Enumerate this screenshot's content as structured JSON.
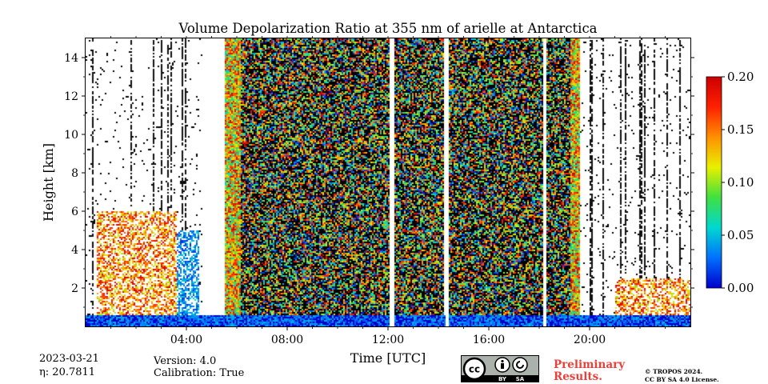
{
  "chart_data": {
    "type": "heatmap",
    "title": "Volume Depolarization Ratio at 355 nm of arielle at Antarctica",
    "xlabel": "Time [UTC]",
    "ylabel": "Height [km]",
    "xlim": [
      0,
      24
    ],
    "ylim": [
      0,
      15
    ],
    "xticks": [
      4,
      8,
      12,
      16,
      20
    ],
    "xtick_labels": [
      "04:00",
      "08:00",
      "12:00",
      "16:00",
      "20:00"
    ],
    "yticks": [
      2,
      4,
      6,
      8,
      10,
      12,
      14
    ],
    "ytick_labels": [
      "2",
      "4",
      "6",
      "8",
      "10",
      "12",
      "14"
    ],
    "colorbar": {
      "min": 0.0,
      "max": 0.2,
      "ticks": [
        0.0,
        0.05,
        0.1,
        0.15,
        0.2
      ],
      "tick_labels": [
        "0.00",
        "0.05",
        "0.10",
        "0.15",
        "0.20"
      ],
      "colormap": "jet",
      "colors": [
        "#0000cc",
        "#0070ff",
        "#00d8d0",
        "#40e040",
        "#e8f000",
        "#ff9000",
        "#ff2000",
        "#cc0000"
      ]
    },
    "regions": [
      {
        "feature": "sparse signal with clear-sky gaps",
        "t_start": 0.0,
        "t_end": 4.6
      },
      {
        "feature": "low cloud layer, high depolarization",
        "t_start": 0.4,
        "t_end": 3.6,
        "height_top": 6.0
      },
      {
        "feature": "tilted precipitation streaks",
        "t_start": 3.0,
        "t_end": 4.5,
        "height_top": 5.0
      },
      {
        "feature": "noisy high-depolarization band",
        "t_start": 5.5,
        "t_end": 6.1
      },
      {
        "feature": "noise-dominated signal",
        "t_start": 6.1,
        "t_end": 12.0
      },
      {
        "feature": "data gap",
        "t_start": 12.05,
        "t_end": 12.2
      },
      {
        "feature": "noise-dominated signal",
        "t_start": 12.2,
        "t_end": 14.2
      },
      {
        "feature": "data gap",
        "t_start": 14.25,
        "t_end": 14.35
      },
      {
        "feature": "noise-dominated signal",
        "t_start": 14.35,
        "t_end": 18.1
      },
      {
        "feature": "data gap",
        "t_start": 18.1,
        "t_end": 18.25
      },
      {
        "feature": "noise-dominated signal",
        "t_start": 18.25,
        "t_end": 19.2
      },
      {
        "feature": "noisy high-depolarization band",
        "t_start": 19.2,
        "t_end": 19.6
      },
      {
        "feature": "sparse signal with clear-sky gaps",
        "t_start": 19.6,
        "t_end": 24.0
      },
      {
        "feature": "low boundary layer, high depolarization",
        "t_start": 21.0,
        "t_end": 24.0,
        "height_top": 2.5
      },
      {
        "feature": "near-surface low-depolarization layer",
        "t_start": 0.0,
        "t_end": 24.0,
        "height_top": 0.6
      }
    ]
  },
  "meta": {
    "date": "2023-03-21",
    "eta": "η: 20.7811",
    "version": "Version: 4.0",
    "calibration": "Calibration: True"
  },
  "license": {
    "badge_cc": "cc",
    "badge_by": "BY",
    "badge_sa": "SA",
    "preliminary_line1": "Preliminary",
    "preliminary_line2": "Results.",
    "copyright_line1": "© TROPOS 2024.",
    "copyright_line2": "CC BY SA 4.0 License.",
    "preliminary_color": "#e8413c"
  }
}
